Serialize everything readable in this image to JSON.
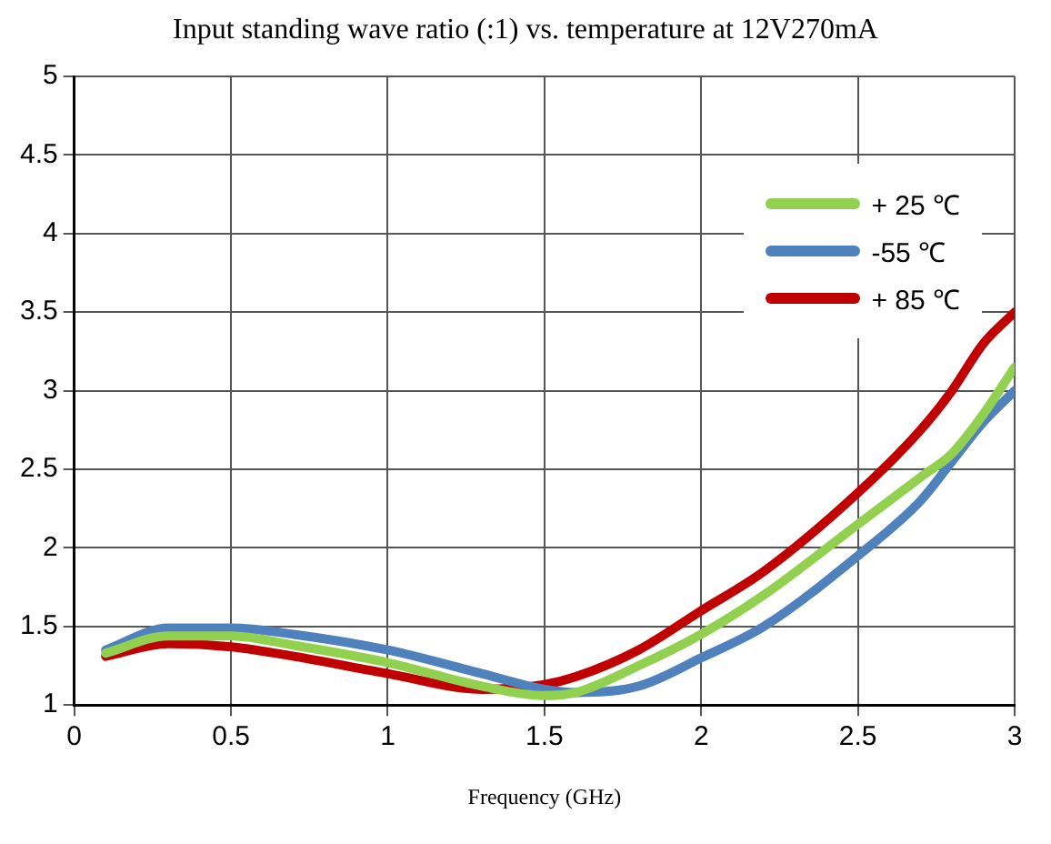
{
  "chart_data": {
    "type": "line",
    "title": "Input standing wave ratio (:1) vs. temperature at 12V270mA",
    "xlabel": "Frequency (GHz)",
    "x": [
      0.1,
      0.3,
      0.5,
      0.7,
      1.0,
      1.3,
      1.5,
      1.6,
      1.8,
      2.0,
      2.2,
      2.5,
      2.7,
      2.8,
      2.9,
      3.0
    ],
    "series": [
      {
        "name": "+ 25 ℃",
        "color": "#92d050",
        "values": [
          1.33,
          1.44,
          1.44,
          1.38,
          1.27,
          1.12,
          1.06,
          1.08,
          1.25,
          1.45,
          1.7,
          2.15,
          2.45,
          2.6,
          2.85,
          3.15
        ]
      },
      {
        "name": "-55 ℃",
        "color": "#4f81bd",
        "values": [
          1.35,
          1.49,
          1.49,
          1.45,
          1.35,
          1.2,
          1.1,
          1.08,
          1.12,
          1.3,
          1.5,
          1.95,
          2.3,
          2.55,
          2.8,
          3.0
        ]
      },
      {
        "name": "+ 85 ℃",
        "color": "#c00000",
        "values": [
          1.31,
          1.39,
          1.37,
          1.31,
          1.2,
          1.1,
          1.13,
          1.18,
          1.35,
          1.6,
          1.85,
          2.35,
          2.75,
          3.0,
          3.3,
          3.5
        ]
      }
    ],
    "xlim": [
      0,
      3
    ],
    "xticks": [
      0,
      0.5,
      1,
      1.5,
      2,
      2.5,
      3
    ],
    "ylim": [
      1,
      5
    ],
    "yticks": [
      1,
      1.5,
      2,
      2.5,
      3,
      3.5,
      4,
      4.5,
      5
    ],
    "grid": true,
    "legend": "top right",
    "marker": "none",
    "line_style": "solid"
  }
}
